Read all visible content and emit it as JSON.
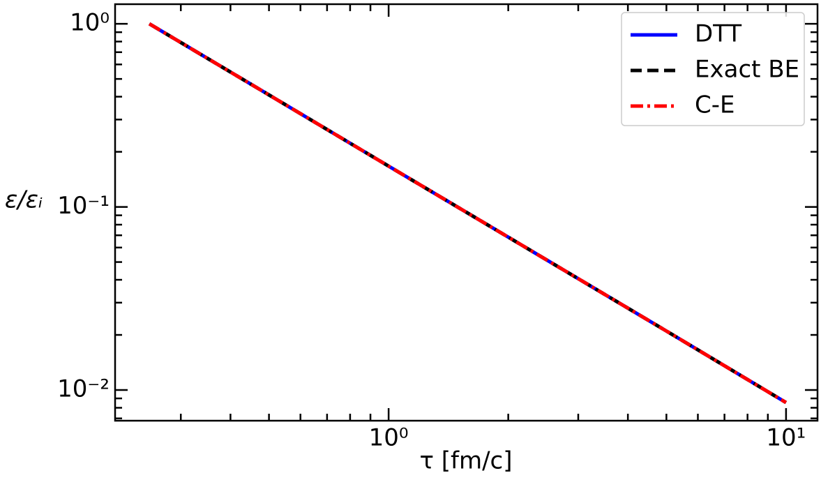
{
  "chart_data": {
    "type": "line",
    "xlabel": "τ [fm/c]",
    "ylabel": "ε/εᵢ",
    "x": [
      0.25,
      0.5,
      1,
      2,
      5,
      10
    ],
    "series": [
      {
        "name": "DTT",
        "color": "#0000ff",
        "linestyle": "solid",
        "values": [
          1.0,
          0.409,
          0.167,
          0.0684,
          0.021,
          0.00854
        ]
      },
      {
        "name": "Exact BE",
        "color": "#000000",
        "linestyle": "dashed",
        "values": [
          1.0,
          0.409,
          0.167,
          0.0684,
          0.021,
          0.00854
        ]
      },
      {
        "name": "C-E",
        "color": "#ff0000",
        "linestyle": "dashdot",
        "values": [
          1.0,
          0.409,
          0.167,
          0.0684,
          0.021,
          0.00854
        ]
      }
    ],
    "xscale": "log",
    "yscale": "log",
    "xlim": [
      0.205,
      12
    ],
    "ylim": [
      0.0068,
      1.28
    ],
    "xticks": [
      {
        "value": 1,
        "label": "10⁰"
      },
      {
        "value": 10,
        "label": "10¹"
      }
    ],
    "yticks": [
      {
        "value": 0.01,
        "label": "10⁻²"
      },
      {
        "value": 0.1,
        "label": "10⁻¹"
      },
      {
        "value": 1,
        "label": "10⁰"
      }
    ],
    "xminorticks": [
      0.3,
      0.4,
      0.5,
      0.6,
      0.7,
      0.8,
      0.9,
      2,
      3,
      4,
      5,
      6,
      7,
      8,
      9
    ],
    "yminorticks": [
      0.007,
      0.008,
      0.009,
      0.02,
      0.03,
      0.04,
      0.05,
      0.06,
      0.07,
      0.08,
      0.09,
      0.2,
      0.3,
      0.4,
      0.5,
      0.6,
      0.7,
      0.8,
      0.9
    ],
    "legend": "upper right",
    "grid": false
  }
}
